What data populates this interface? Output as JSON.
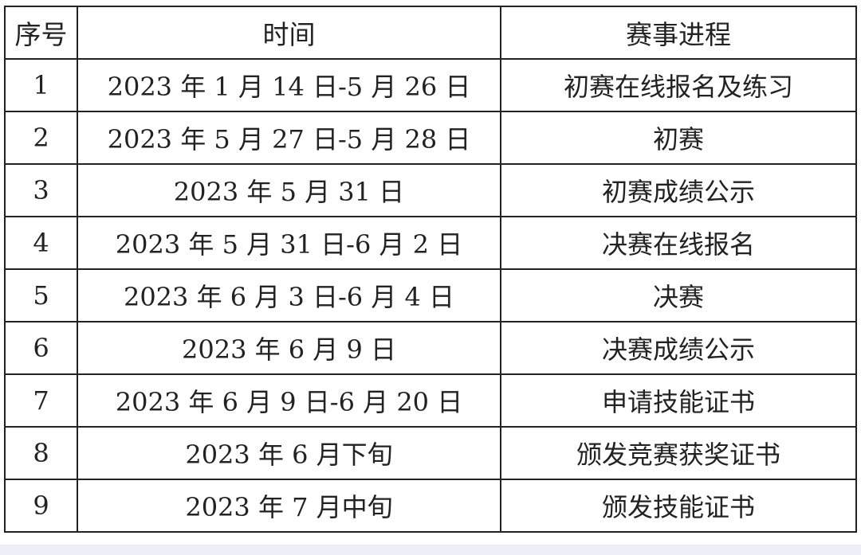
{
  "table": {
    "headers": [
      "序号",
      "时间",
      "赛事进程"
    ],
    "rows": [
      [
        "1",
        "2023 年 1 月 14 日-5 月 26 日",
        "初赛在线报名及练习"
      ],
      [
        "2",
        "2023 年 5 月 27 日-5 月 28 日",
        "初赛"
      ],
      [
        "3",
        "2023 年 5 月 31 日",
        "初赛成绩公示"
      ],
      [
        "4",
        "2023 年 5 月 31 日-6 月 2 日",
        "决赛在线报名"
      ],
      [
        "5",
        "2023 年 6 月 3 日-6 月 4 日",
        "决赛"
      ],
      [
        "6",
        "2023 年 6 月 9 日",
        "决赛成绩公示"
      ],
      [
        "7",
        "2023 年 6 月 9 日-6 月 20 日",
        "申请技能证书"
      ],
      [
        "8",
        "2023 年 6 月下旬",
        "颁发竞赛获奖证书"
      ],
      [
        "9",
        "2023 年 7 月中旬",
        "颁发技能证书"
      ]
    ]
  }
}
